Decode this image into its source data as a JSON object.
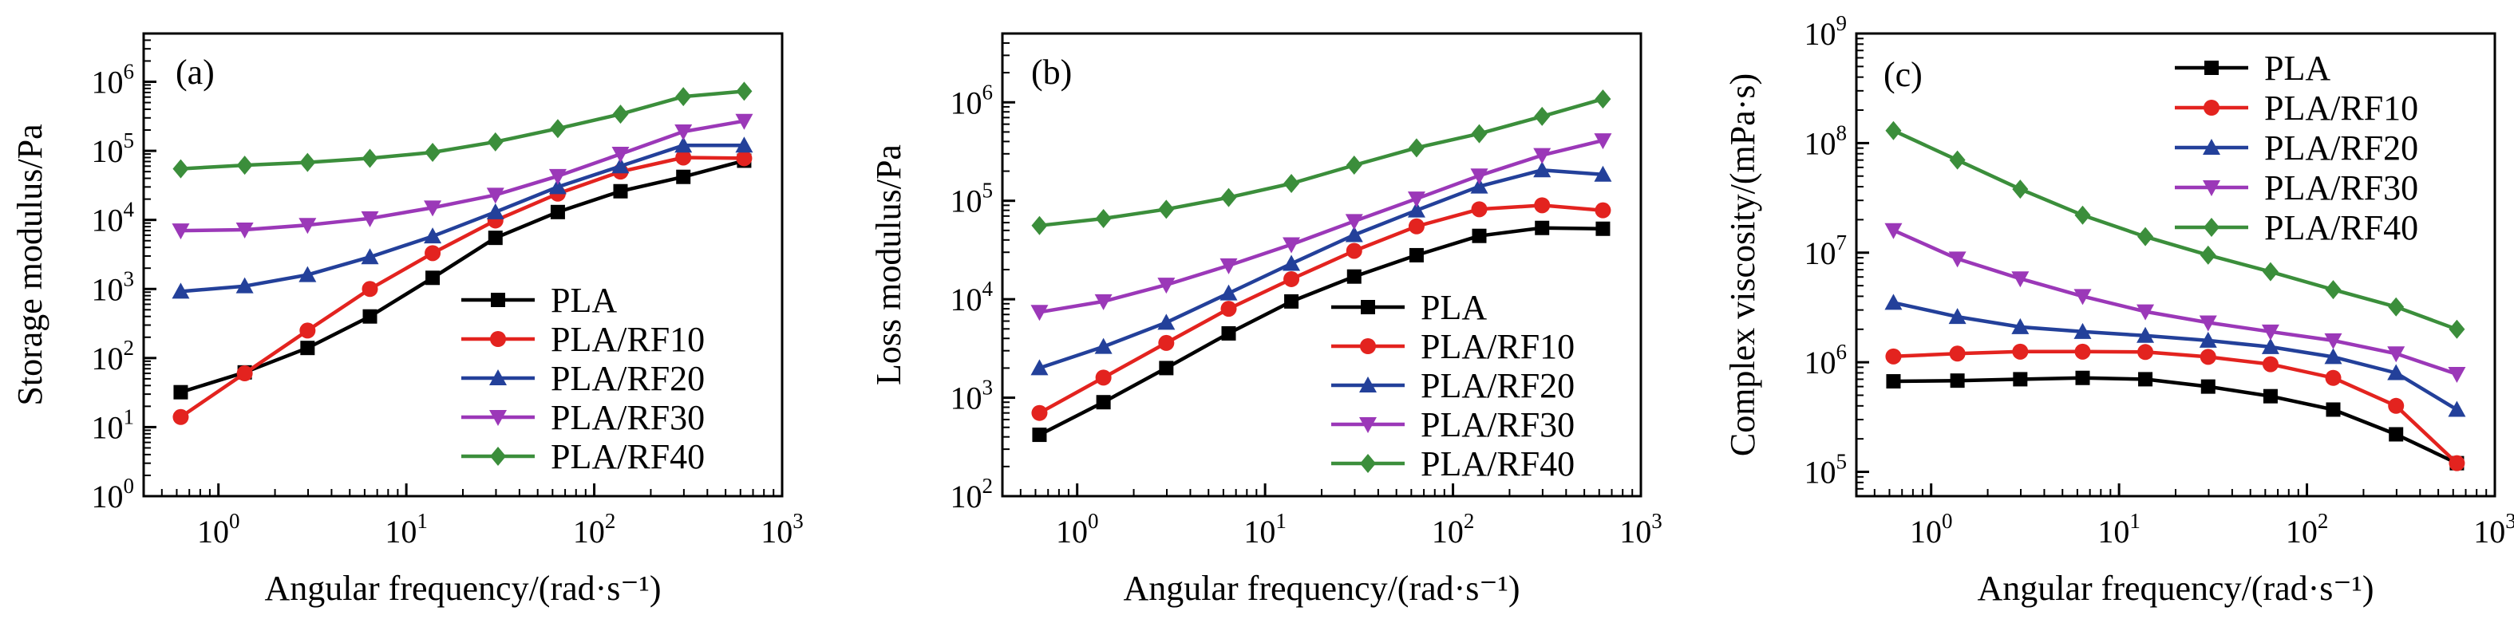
{
  "chart_data": [
    {
      "type": "line",
      "panel_label": "(a)",
      "xlabel": "Angular frequency/(rad·s⁻¹)",
      "ylabel": "Storage modulus/Pa",
      "x_scale": "log",
      "y_scale": "log",
      "xlim": [
        0.4,
        1000
      ],
      "ylim": [
        1,
        5000000
      ],
      "x_ticks": [
        1,
        10,
        100,
        1000
      ],
      "y_ticks": [
        1,
        10,
        100,
        1000,
        10000,
        100000,
        1000000
      ],
      "x": [
        0.63,
        1.38,
        2.98,
        6.4,
        13.8,
        29.8,
        64,
        138,
        298,
        628
      ],
      "legend_position": "lower-right",
      "series": [
        {
          "name": "PLA",
          "color": "#000000",
          "marker": "square",
          "values": [
            32,
            62,
            140,
            400,
            1450,
            5500,
            13000,
            26000,
            42000,
            72000
          ]
        },
        {
          "name": "PLA/RF10",
          "color": "#e3231f",
          "marker": "circle",
          "values": [
            14,
            60,
            250,
            1000,
            3300,
            9800,
            24000,
            50000,
            80000,
            78000
          ]
        },
        {
          "name": "PLA/RF20",
          "color": "#23409a",
          "marker": "triangle-up",
          "values": [
            920,
            1100,
            1600,
            2900,
            5800,
            13000,
            30000,
            60000,
            120000,
            120000
          ]
        },
        {
          "name": "PLA/RF30",
          "color": "#9b38b8",
          "marker": "triangle-down",
          "values": [
            7000,
            7200,
            8400,
            10500,
            15000,
            23000,
            43000,
            90000,
            190000,
            270000
          ]
        },
        {
          "name": "PLA/RF40",
          "color": "#3b8e3b",
          "marker": "diamond",
          "values": [
            55000,
            62000,
            68000,
            78000,
            95000,
            135000,
            210000,
            340000,
            610000,
            730000
          ]
        }
      ]
    },
    {
      "type": "line",
      "panel_label": "(b)",
      "xlabel": "Angular frequency/(rad·s⁻¹)",
      "ylabel": "Loss modulus/Pa",
      "x_scale": "log",
      "y_scale": "log",
      "xlim": [
        0.4,
        1000
      ],
      "ylim": [
        100,
        5000000
      ],
      "x_ticks": [
        1,
        10,
        100,
        1000
      ],
      "y_ticks": [
        100,
        1000,
        10000,
        100000,
        1000000
      ],
      "x": [
        0.63,
        1.38,
        2.98,
        6.4,
        13.8,
        29.8,
        64,
        138,
        298,
        628
      ],
      "legend_position": "lower-right",
      "series": [
        {
          "name": "PLA",
          "color": "#000000",
          "marker": "square",
          "values": [
            420,
            900,
            2000,
            4500,
            9500,
            17000,
            28000,
            44000,
            53000,
            52000
          ]
        },
        {
          "name": "PLA/RF10",
          "color": "#e3231f",
          "marker": "circle",
          "values": [
            700,
            1600,
            3600,
            8000,
            16000,
            31000,
            55000,
            82000,
            90000,
            80000
          ]
        },
        {
          "name": "PLA/RF20",
          "color": "#23409a",
          "marker": "triangle-up",
          "values": [
            2000,
            3300,
            5800,
            11500,
            23000,
            45000,
            80000,
            140000,
            205000,
            185000
          ]
        },
        {
          "name": "PLA/RF30",
          "color": "#9b38b8",
          "marker": "triangle-down",
          "values": [
            7400,
            9500,
            14000,
            22000,
            36000,
            62000,
            105000,
            180000,
            290000,
            410000
          ]
        },
        {
          "name": "PLA/RF40",
          "color": "#3b8e3b",
          "marker": "diamond",
          "values": [
            56000,
            66000,
            82000,
            108000,
            150000,
            230000,
            345000,
            480000,
            720000,
            1080000
          ]
        }
      ]
    },
    {
      "type": "line",
      "panel_label": "(c)",
      "xlabel": "Angular frequency/(rad·s⁻¹)",
      "ylabel": "Complex viscosity/(mPa·s)",
      "x_scale": "log",
      "y_scale": "log",
      "xlim": [
        0.4,
        1000
      ],
      "ylim": [
        60000,
        1000000000
      ],
      "x_ticks": [
        1,
        10,
        100,
        1000
      ],
      "y_ticks": [
        100000,
        1000000,
        10000000,
        100000000,
        1000000000
      ],
      "x": [
        0.63,
        1.38,
        2.98,
        6.4,
        13.8,
        29.8,
        64,
        138,
        298,
        628
      ],
      "legend_position": "top-right",
      "series": [
        {
          "name": "PLA",
          "color": "#000000",
          "marker": "square",
          "values": [
            670000,
            680000,
            700000,
            720000,
            700000,
            600000,
            490000,
            370000,
            220000,
            120000
          ]
        },
        {
          "name": "PLA/RF10",
          "color": "#e3231f",
          "marker": "circle",
          "values": [
            1130000,
            1200000,
            1250000,
            1250000,
            1240000,
            1120000,
            960000,
            720000,
            400000,
            120000
          ]
        },
        {
          "name": "PLA/RF20",
          "color": "#23409a",
          "marker": "triangle-up",
          "values": [
            3500000,
            2600000,
            2100000,
            1900000,
            1750000,
            1580000,
            1380000,
            1120000,
            800000,
            370000
          ]
        },
        {
          "name": "PLA/RF30",
          "color": "#9b38b8",
          "marker": "triangle-down",
          "values": [
            16000000,
            8800000,
            5800000,
            4000000,
            2900000,
            2300000,
            1900000,
            1580000,
            1200000,
            780000
          ]
        },
        {
          "name": "PLA/RF40",
          "color": "#3b8e3b",
          "marker": "diamond",
          "values": [
            130000000,
            70000000,
            38000000,
            22000000,
            14000000,
            9500000,
            6700000,
            4600000,
            3200000,
            2000000
          ]
        }
      ]
    }
  ]
}
